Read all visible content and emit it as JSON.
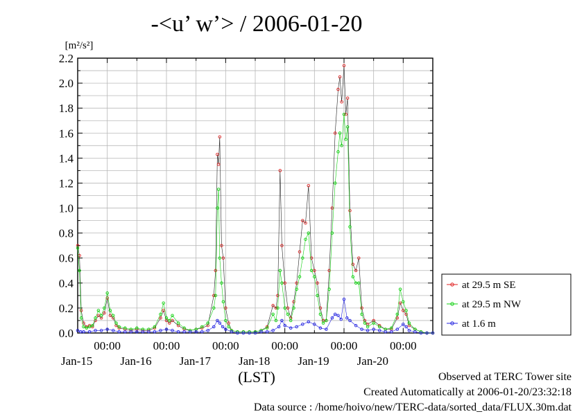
{
  "chart_data": {
    "type": "line",
    "title": "-<u’ w’> / 2006-01-20",
    "ylabel": "[m²/s²]",
    "xlabel": "(LST)",
    "ylim": [
      0,
      2.2
    ],
    "y_ticks": [
      "0.0",
      "0.2",
      "0.4",
      "0.6",
      "0.8",
      "1.0",
      "1.2",
      "1.4",
      "1.6",
      "1.8",
      "2.0",
      "2.2"
    ],
    "x_ticks": [
      {
        "time": "00:00",
        "date": "Jan-15"
      },
      {
        "time": "00:00",
        "date": "Jan-16"
      },
      {
        "time": "00:00",
        "date": "Jan-17"
      },
      {
        "time": "00:00",
        "date": "Jan-18"
      },
      {
        "time": "00:00",
        "date": "Jan-19"
      },
      {
        "time": "00:00",
        "date": "Jan-20"
      }
    ],
    "x_unit": "days (Jan-14 12:00 to Jan-20 24:00 LST)",
    "grid": true,
    "legend_position": "right",
    "series": [
      {
        "name": "at 29.5 m SE",
        "color": "#e02020",
        "points": [
          [
            0.0,
            0.7
          ],
          [
            0.03,
            0.62
          ],
          [
            0.06,
            0.18
          ],
          [
            0.1,
            0.08
          ],
          [
            0.15,
            0.05
          ],
          [
            0.2,
            0.06
          ],
          [
            0.25,
            0.05
          ],
          [
            0.3,
            0.1
          ],
          [
            0.35,
            0.14
          ],
          [
            0.4,
            0.12
          ],
          [
            0.45,
            0.16
          ],
          [
            0.5,
            0.28
          ],
          [
            0.55,
            0.14
          ],
          [
            0.6,
            0.12
          ],
          [
            0.65,
            0.06
          ],
          [
            0.7,
            0.04
          ],
          [
            0.8,
            0.03
          ],
          [
            0.9,
            0.02
          ],
          [
            1.0,
            0.03
          ],
          [
            1.1,
            0.02
          ],
          [
            1.2,
            0.02
          ],
          [
            1.3,
            0.04
          ],
          [
            1.4,
            0.12
          ],
          [
            1.45,
            0.18
          ],
          [
            1.5,
            0.1
          ],
          [
            1.55,
            0.08
          ],
          [
            1.6,
            0.1
          ],
          [
            1.7,
            0.06
          ],
          [
            1.8,
            0.03
          ],
          [
            1.9,
            0.02
          ],
          [
            2.0,
            0.03
          ],
          [
            2.1,
            0.04
          ],
          [
            2.2,
            0.06
          ],
          [
            2.3,
            0.3
          ],
          [
            2.33,
            0.5
          ],
          [
            2.36,
            1.43
          ],
          [
            2.38,
            1.35
          ],
          [
            2.4,
            1.57
          ],
          [
            2.43,
            0.7
          ],
          [
            2.46,
            0.6
          ],
          [
            2.5,
            0.2
          ],
          [
            2.55,
            0.08
          ],
          [
            2.6,
            0.02
          ],
          [
            2.7,
            0.01
          ],
          [
            2.8,
            0.01
          ],
          [
            2.9,
            0.01
          ],
          [
            3.0,
            0.01
          ],
          [
            3.1,
            0.02
          ],
          [
            3.2,
            0.05
          ],
          [
            3.3,
            0.22
          ],
          [
            3.35,
            0.2
          ],
          [
            3.38,
            0.3
          ],
          [
            3.42,
            1.3
          ],
          [
            3.45,
            0.7
          ],
          [
            3.5,
            0.4
          ],
          [
            3.55,
            0.2
          ],
          [
            3.6,
            0.12
          ],
          [
            3.65,
            0.25
          ],
          [
            3.7,
            0.4
          ],
          [
            3.75,
            0.65
          ],
          [
            3.8,
            0.9
          ],
          [
            3.85,
            0.88
          ],
          [
            3.9,
            1.18
          ],
          [
            3.95,
            0.6
          ],
          [
            4.0,
            0.5
          ],
          [
            4.05,
            0.4
          ],
          [
            4.1,
            0.2
          ],
          [
            4.15,
            0.1
          ],
          [
            4.2,
            0.1
          ],
          [
            4.25,
            0.5
          ],
          [
            4.3,
            1.0
          ],
          [
            4.35,
            1.6
          ],
          [
            4.4,
            1.95
          ],
          [
            4.43,
            2.05
          ],
          [
            4.46,
            1.85
          ],
          [
            4.5,
            2.14
          ],
          [
            4.53,
            1.75
          ],
          [
            4.56,
            1.88
          ],
          [
            4.6,
            0.98
          ],
          [
            4.65,
            0.55
          ],
          [
            4.7,
            0.5
          ],
          [
            4.75,
            0.6
          ],
          [
            4.8,
            0.2
          ],
          [
            4.85,
            0.1
          ],
          [
            4.9,
            0.07
          ],
          [
            5.0,
            0.1
          ],
          [
            5.1,
            0.06
          ],
          [
            5.2,
            0.03
          ],
          [
            5.3,
            0.03
          ],
          [
            5.4,
            0.12
          ],
          [
            5.45,
            0.24
          ],
          [
            5.5,
            0.18
          ],
          [
            5.55,
            0.15
          ],
          [
            5.6,
            0.06
          ],
          [
            5.7,
            0.03
          ],
          [
            5.8,
            0.01
          ],
          [
            5.9,
            0.0
          ],
          [
            6.0,
            0.0
          ]
        ]
      },
      {
        "name": "at 29.5 m NW",
        "color": "#10d010",
        "points": [
          [
            0.0,
            0.68
          ],
          [
            0.03,
            0.5
          ],
          [
            0.06,
            0.12
          ],
          [
            0.1,
            0.05
          ],
          [
            0.15,
            0.04
          ],
          [
            0.2,
            0.05
          ],
          [
            0.25,
            0.06
          ],
          [
            0.3,
            0.12
          ],
          [
            0.35,
            0.18
          ],
          [
            0.4,
            0.14
          ],
          [
            0.45,
            0.2
          ],
          [
            0.5,
            0.32
          ],
          [
            0.55,
            0.18
          ],
          [
            0.6,
            0.14
          ],
          [
            0.65,
            0.08
          ],
          [
            0.7,
            0.05
          ],
          [
            0.8,
            0.04
          ],
          [
            0.9,
            0.03
          ],
          [
            1.0,
            0.04
          ],
          [
            1.1,
            0.03
          ],
          [
            1.2,
            0.03
          ],
          [
            1.3,
            0.05
          ],
          [
            1.4,
            0.15
          ],
          [
            1.45,
            0.24
          ],
          [
            1.5,
            0.12
          ],
          [
            1.55,
            0.1
          ],
          [
            1.6,
            0.14
          ],
          [
            1.7,
            0.08
          ],
          [
            1.8,
            0.04
          ],
          [
            1.9,
            0.02
          ],
          [
            2.0,
            0.03
          ],
          [
            2.1,
            0.05
          ],
          [
            2.2,
            0.08
          ],
          [
            2.3,
            0.2
          ],
          [
            2.33,
            0.3
          ],
          [
            2.36,
            1.0
          ],
          [
            2.38,
            1.15
          ],
          [
            2.4,
            0.6
          ],
          [
            2.43,
            0.4
          ],
          [
            2.46,
            0.25
          ],
          [
            2.5,
            0.1
          ],
          [
            2.55,
            0.05
          ],
          [
            2.6,
            0.02
          ],
          [
            2.7,
            0.01
          ],
          [
            2.8,
            0.01
          ],
          [
            2.9,
            0.01
          ],
          [
            3.0,
            0.01
          ],
          [
            3.1,
            0.02
          ],
          [
            3.2,
            0.04
          ],
          [
            3.3,
            0.15
          ],
          [
            3.35,
            0.1
          ],
          [
            3.38,
            0.2
          ],
          [
            3.42,
            0.5
          ],
          [
            3.45,
            0.4
          ],
          [
            3.5,
            0.2
          ],
          [
            3.55,
            0.15
          ],
          [
            3.6,
            0.1
          ],
          [
            3.65,
            0.2
          ],
          [
            3.7,
            0.35
          ],
          [
            3.75,
            0.45
          ],
          [
            3.8,
            0.6
          ],
          [
            3.85,
            0.75
          ],
          [
            3.9,
            0.8
          ],
          [
            3.95,
            0.5
          ],
          [
            4.0,
            0.45
          ],
          [
            4.05,
            0.3
          ],
          [
            4.1,
            0.15
          ],
          [
            4.15,
            0.08
          ],
          [
            4.2,
            0.1
          ],
          [
            4.25,
            0.35
          ],
          [
            4.3,
            0.8
          ],
          [
            4.35,
            1.2
          ],
          [
            4.4,
            1.45
          ],
          [
            4.43,
            1.6
          ],
          [
            4.46,
            1.5
          ],
          [
            4.5,
            1.75
          ],
          [
            4.53,
            1.55
          ],
          [
            4.56,
            1.65
          ],
          [
            4.6,
            0.85
          ],
          [
            4.65,
            0.45
          ],
          [
            4.7,
            0.4
          ],
          [
            4.75,
            0.4
          ],
          [
            4.8,
            0.15
          ],
          [
            4.85,
            0.08
          ],
          [
            4.9,
            0.05
          ],
          [
            5.0,
            0.08
          ],
          [
            5.1,
            0.05
          ],
          [
            5.2,
            0.03
          ],
          [
            5.3,
            0.04
          ],
          [
            5.4,
            0.15
          ],
          [
            5.45,
            0.35
          ],
          [
            5.5,
            0.25
          ],
          [
            5.55,
            0.18
          ],
          [
            5.6,
            0.08
          ],
          [
            5.7,
            0.03
          ],
          [
            5.8,
            0.01
          ],
          [
            5.9,
            0.0
          ],
          [
            6.0,
            0.0
          ]
        ]
      },
      {
        "name": "at 1.6 m",
        "color": "#2020e0",
        "points": [
          [
            0.0,
            0.02
          ],
          [
            0.05,
            0.01
          ],
          [
            0.1,
            0.01
          ],
          [
            0.2,
            0.01
          ],
          [
            0.3,
            0.02
          ],
          [
            0.4,
            0.02
          ],
          [
            0.5,
            0.03
          ],
          [
            0.6,
            0.02
          ],
          [
            0.7,
            0.01
          ],
          [
            0.8,
            0.01
          ],
          [
            0.9,
            0.01
          ],
          [
            1.0,
            0.01
          ],
          [
            1.1,
            0.01
          ],
          [
            1.2,
            0.01
          ],
          [
            1.3,
            0.01
          ],
          [
            1.4,
            0.02
          ],
          [
            1.5,
            0.03
          ],
          [
            1.6,
            0.02
          ],
          [
            1.7,
            0.01
          ],
          [
            1.8,
            0.01
          ],
          [
            1.9,
            0.01
          ],
          [
            2.0,
            0.01
          ],
          [
            2.1,
            0.01
          ],
          [
            2.2,
            0.02
          ],
          [
            2.3,
            0.05
          ],
          [
            2.36,
            0.1
          ],
          [
            2.4,
            0.08
          ],
          [
            2.45,
            0.05
          ],
          [
            2.5,
            0.03
          ],
          [
            2.6,
            0.01
          ],
          [
            2.7,
            0.0
          ],
          [
            2.8,
            0.0
          ],
          [
            2.9,
            0.0
          ],
          [
            3.0,
            0.0
          ],
          [
            3.1,
            0.01
          ],
          [
            3.2,
            0.01
          ],
          [
            3.3,
            0.02
          ],
          [
            3.4,
            0.05
          ],
          [
            3.45,
            0.1
          ],
          [
            3.5,
            0.06
          ],
          [
            3.6,
            0.04
          ],
          [
            3.7,
            0.05
          ],
          [
            3.8,
            0.07
          ],
          [
            3.9,
            0.09
          ],
          [
            4.0,
            0.07
          ],
          [
            4.1,
            0.04
          ],
          [
            4.2,
            0.03
          ],
          [
            4.3,
            0.12
          ],
          [
            4.35,
            0.15
          ],
          [
            4.4,
            0.14
          ],
          [
            4.45,
            0.11
          ],
          [
            4.5,
            0.27
          ],
          [
            4.55,
            0.12
          ],
          [
            4.6,
            0.1
          ],
          [
            4.7,
            0.06
          ],
          [
            4.8,
            0.03
          ],
          [
            4.9,
            0.02
          ],
          [
            5.0,
            0.03
          ],
          [
            5.1,
            0.02
          ],
          [
            5.2,
            0.01
          ],
          [
            5.3,
            0.01
          ],
          [
            5.4,
            0.03
          ],
          [
            5.5,
            0.07
          ],
          [
            5.55,
            0.05
          ],
          [
            5.6,
            0.02
          ],
          [
            5.7,
            0.01
          ],
          [
            5.8,
            0.0
          ],
          [
            5.9,
            0.0
          ],
          [
            6.0,
            0.0
          ]
        ]
      }
    ]
  },
  "footer": {
    "observed": "Observed at TERC Tower site",
    "created": "Created Automatically at 2006-01-20/23:32:18",
    "source": "Data source : /home/hoivo/new/TERC-data/sorted_data/FLUX.30m.dat"
  }
}
